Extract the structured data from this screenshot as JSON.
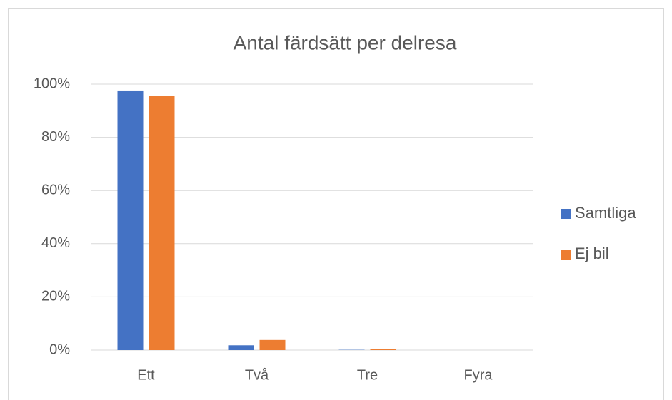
{
  "chart_data": {
    "type": "bar",
    "title": "Antal färdsätt per delresa",
    "categories": [
      "Ett",
      "Två",
      "Tre",
      "Fyra"
    ],
    "series": [
      {
        "name": "Samtliga",
        "color": "#4472c4",
        "values": [
          97.6,
          1.8,
          0.1,
          0
        ]
      },
      {
        "name": "Ej bil",
        "color": "#ed7d31",
        "values": [
          95.7,
          3.8,
          0.5,
          0
        ]
      }
    ],
    "ylim": [
      0,
      100
    ],
    "yticks": [
      {
        "value": 0,
        "label": "0%"
      },
      {
        "value": 20,
        "label": "20%"
      },
      {
        "value": 40,
        "label": "40%"
      },
      {
        "value": 60,
        "label": "60%"
      },
      {
        "value": 80,
        "label": "80%"
      },
      {
        "value": 100,
        "label": "100%"
      }
    ],
    "grid": true,
    "legend": "right"
  }
}
